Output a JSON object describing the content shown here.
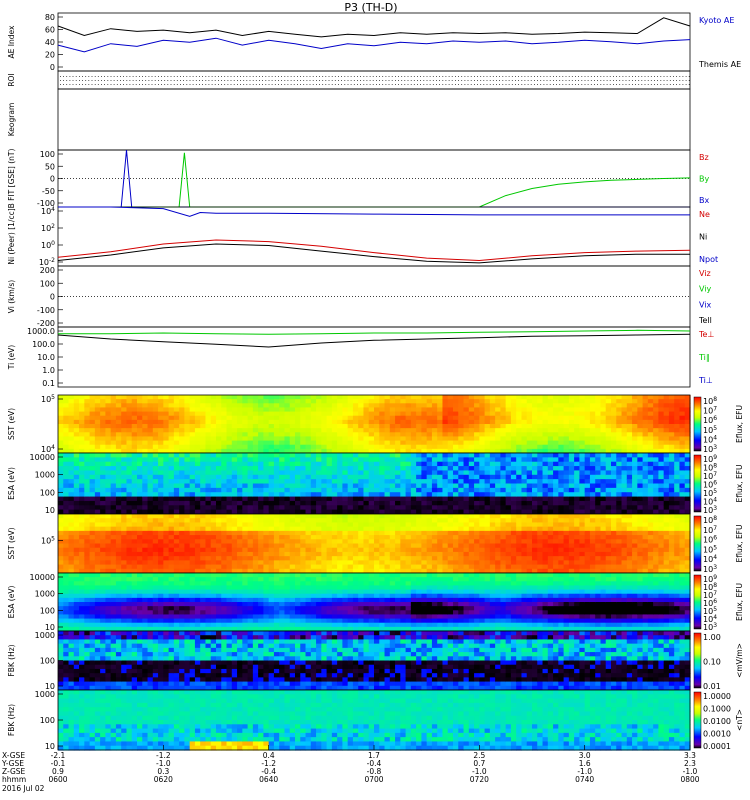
{
  "title": "P3 (TH-D)",
  "colors": {
    "black": "#000000",
    "red": "#d40000",
    "green": "#00c800",
    "blue": "#0000c8",
    "kyoto": "#0000c8",
    "themis": "#000000"
  },
  "xaxis": {
    "ticks_hhmm": [
      "0600",
      "0620",
      "0640",
      "0700",
      "0720",
      "0740",
      "0800"
    ],
    "x_gse": [
      "-2.1",
      "-1.2",
      "0.4",
      "1.7",
      "2.5",
      "3.0",
      "3.3"
    ],
    "y_gse": [
      "-0.1",
      "-1.0",
      "-1.2",
      "-0.4",
      "0.7",
      "1.6",
      "2.3"
    ],
    "z_gse": [
      "0.9",
      "0.3",
      "-0.4",
      "-0.8",
      "-1.0",
      "-1.0",
      "-1.0"
    ],
    "row_labels": [
      "X-GSE",
      "Y-GSE",
      "Z-GSE",
      "hhmm"
    ],
    "date": "2016 Jul 02"
  },
  "chart_data": [
    {
      "id": "ae",
      "type": "line",
      "ylabel": "AE Index",
      "yticks": [
        "80",
        "60",
        "40",
        "20",
        "0"
      ],
      "ylim": [
        0,
        85
      ],
      "legend": [
        "Kyoto AE",
        "Themis AE"
      ],
      "series": [
        {
          "name": "Kyoto AE",
          "color": "blue",
          "x": [
            0,
            5,
            10,
            15,
            20,
            25,
            30,
            35,
            40,
            45,
            50,
            55,
            60,
            65,
            70,
            75,
            80,
            85,
            90,
            95,
            100,
            105,
            110,
            115,
            120
          ],
          "y": [
            38,
            28,
            40,
            36,
            45,
            42,
            48,
            38,
            45,
            40,
            33,
            40,
            37,
            42,
            40,
            44,
            42,
            44,
            40,
            42,
            45,
            43,
            40,
            44,
            46
          ]
        },
        {
          "name": "Themis AE",
          "color": "black",
          "x": [
            0,
            5,
            10,
            15,
            20,
            25,
            30,
            35,
            40,
            45,
            50,
            55,
            60,
            65,
            70,
            75,
            80,
            85,
            90,
            95,
            100,
            105,
            110,
            115,
            120
          ],
          "y": [
            66,
            52,
            62,
            58,
            60,
            56,
            60,
            52,
            58,
            54,
            50,
            54,
            52,
            56,
            54,
            56,
            55,
            56,
            54,
            55,
            57,
            56,
            55,
            78,
            66
          ]
        }
      ]
    },
    {
      "id": "roi",
      "type": "table",
      "ylabel": "ROI"
    },
    {
      "id": "keogram",
      "type": "table",
      "ylabel": "Keogram"
    },
    {
      "id": "bfield",
      "type": "line",
      "ylabel": "B FIT [GSE] (nT)",
      "yticks": [
        "100",
        "50",
        "0",
        "-50",
        "-100"
      ],
      "ylim": [
        -100,
        100
      ],
      "legend": [
        "Bz",
        "By",
        "Bx"
      ],
      "series": [
        {
          "name": "Bx",
          "color": "blue",
          "x": [
            0,
            12,
            13,
            14,
            35,
            120
          ],
          "y": [
            -100,
            -100,
            100,
            -100,
            -100,
            -100
          ]
        },
        {
          "name": "By",
          "color": "green",
          "x": [
            0,
            23,
            24,
            25,
            80,
            85,
            90,
            95,
            100,
            105,
            110,
            115,
            120
          ],
          "y": [
            -100,
            -100,
            90,
            -100,
            -100,
            -60,
            -35,
            -20,
            -12,
            -6,
            -3,
            0,
            2
          ]
        }
      ]
    },
    {
      "id": "density",
      "type": "line",
      "ylabel": "Ni (Peer) [1/cc]",
      "yticks": [
        "10^4",
        "10^2",
        "10^0",
        "10^-2"
      ],
      "ylim": [
        -2.5,
        5
      ],
      "legend": [
        "Ne",
        "Ni",
        "Npot"
      ],
      "series": [
        {
          "name": "Ne",
          "color": "blue",
          "x": [
            0,
            10,
            20,
            25,
            27,
            30,
            40,
            60,
            80,
            100,
            120
          ],
          "y": [
            5,
            5,
            4.8,
            3.8,
            4.3,
            4.2,
            4.2,
            4.1,
            4.0,
            4.0,
            4.0
          ]
        },
        {
          "name": "Ni",
          "color": "red",
          "x": [
            0,
            10,
            20,
            30,
            40,
            50,
            60,
            70,
            80,
            90,
            100,
            110,
            120
          ],
          "y": [
            -1.4,
            -0.7,
            0.3,
            0.8,
            0.6,
            0.0,
            -0.8,
            -1.5,
            -1.8,
            -1.2,
            -0.8,
            -0.6,
            -0.5
          ]
        },
        {
          "name": "Npot",
          "color": "black",
          "x": [
            0,
            10,
            20,
            30,
            40,
            50,
            60,
            70,
            80,
            90,
            100,
            110,
            120
          ],
          "y": [
            -1.8,
            -1.1,
            -0.2,
            0.3,
            0.1,
            -0.6,
            -1.3,
            -1.9,
            -2.1,
            -1.6,
            -1.2,
            -1.0,
            -1.0
          ]
        }
      ]
    },
    {
      "id": "velocity",
      "type": "line",
      "ylabel": "Vi (km/s)",
      "yticks": [
        "200",
        "100",
        "0",
        "-100",
        "-200"
      ],
      "ylim": [
        -250,
        250
      ],
      "legend": [
        "Viz",
        "Viy",
        "Vix",
        "Tell"
      ],
      "series": []
    },
    {
      "id": "temperature",
      "type": "line",
      "ylabel": "Ti (eV)",
      "yticks": [
        "1000.0",
        "100.0",
        "10.0",
        "1.0",
        "0.1"
      ],
      "ylim": [
        -1,
        3.5
      ],
      "legend": [
        "Te⊥",
        "Ti∥",
        "Ti⊥"
      ],
      "series": [
        {
          "name": "Te",
          "color": "black",
          "x": [
            0,
            10,
            20,
            30,
            40,
            50,
            60,
            70,
            80,
            90,
            100,
            110,
            120
          ],
          "y": [
            2.9,
            2.6,
            2.4,
            2.2,
            2.0,
            2.3,
            2.5,
            2.6,
            2.7,
            2.8,
            2.85,
            2.9,
            2.95
          ]
        },
        {
          "name": "Ti",
          "color": "green",
          "x": [
            0,
            10,
            20,
            30,
            40,
            50,
            60,
            70,
            80,
            90,
            100,
            110,
            120
          ],
          "y": [
            3.0,
            3.0,
            3.05,
            3.0,
            2.95,
            3.0,
            3.05,
            3.05,
            3.1,
            3.15,
            3.2,
            3.25,
            3.2
          ]
        }
      ]
    },
    {
      "id": "sst-e",
      "type": "heatmap",
      "ylabel": "SST (eV)",
      "yticks": [
        "10^5",
        "10^4"
      ],
      "colorbar": [
        "10^8",
        "10^7",
        "10^6",
        "10^5",
        "10^4",
        "10^3"
      ],
      "cblabel": "Eflux, EFU"
    },
    {
      "id": "esa-e",
      "type": "heatmap",
      "ylabel": "ESA (eV)",
      "yticks": [
        "10000",
        "1000",
        "100",
        "10"
      ],
      "colorbar": [
        "10^9",
        "10^8",
        "10^7",
        "10^6",
        "10^5",
        "10^4",
        "10^3"
      ],
      "cblabel": "Eflux, EFU"
    },
    {
      "id": "sst-i",
      "type": "heatmap",
      "ylabel": "SST (eV)",
      "yticks": [
        "10^5"
      ],
      "colorbar": [
        "10^8",
        "10^7",
        "10^6",
        "10^5",
        "10^4",
        "10^3"
      ],
      "cblabel": "Eflux, EFU"
    },
    {
      "id": "esa-i",
      "type": "heatmap",
      "ylabel": "ESA (eV)",
      "yticks": [
        "10000",
        "1000",
        "100",
        "10"
      ],
      "colorbar": [
        "10^9",
        "10^8",
        "10^7",
        "10^6",
        "10^5",
        "10^4",
        "10^3"
      ],
      "cblabel": "Eflux, EFU"
    },
    {
      "id": "fbk-e",
      "type": "heatmap",
      "ylabel": "FBK (Hz)",
      "yticks": [
        "1000",
        "100",
        "10"
      ],
      "colorbar": [
        "1.00",
        "0.10",
        "0.01"
      ],
      "cblabel": "<mV/m>"
    },
    {
      "id": "fbk-b",
      "type": "heatmap",
      "ylabel": "FBK (Hz)",
      "yticks": [
        "1000",
        "100",
        "10"
      ],
      "colorbar": [
        "1.0000",
        "0.1000",
        "0.0100",
        "0.0010",
        "0.0001"
      ],
      "cblabel": "<nT>"
    }
  ]
}
